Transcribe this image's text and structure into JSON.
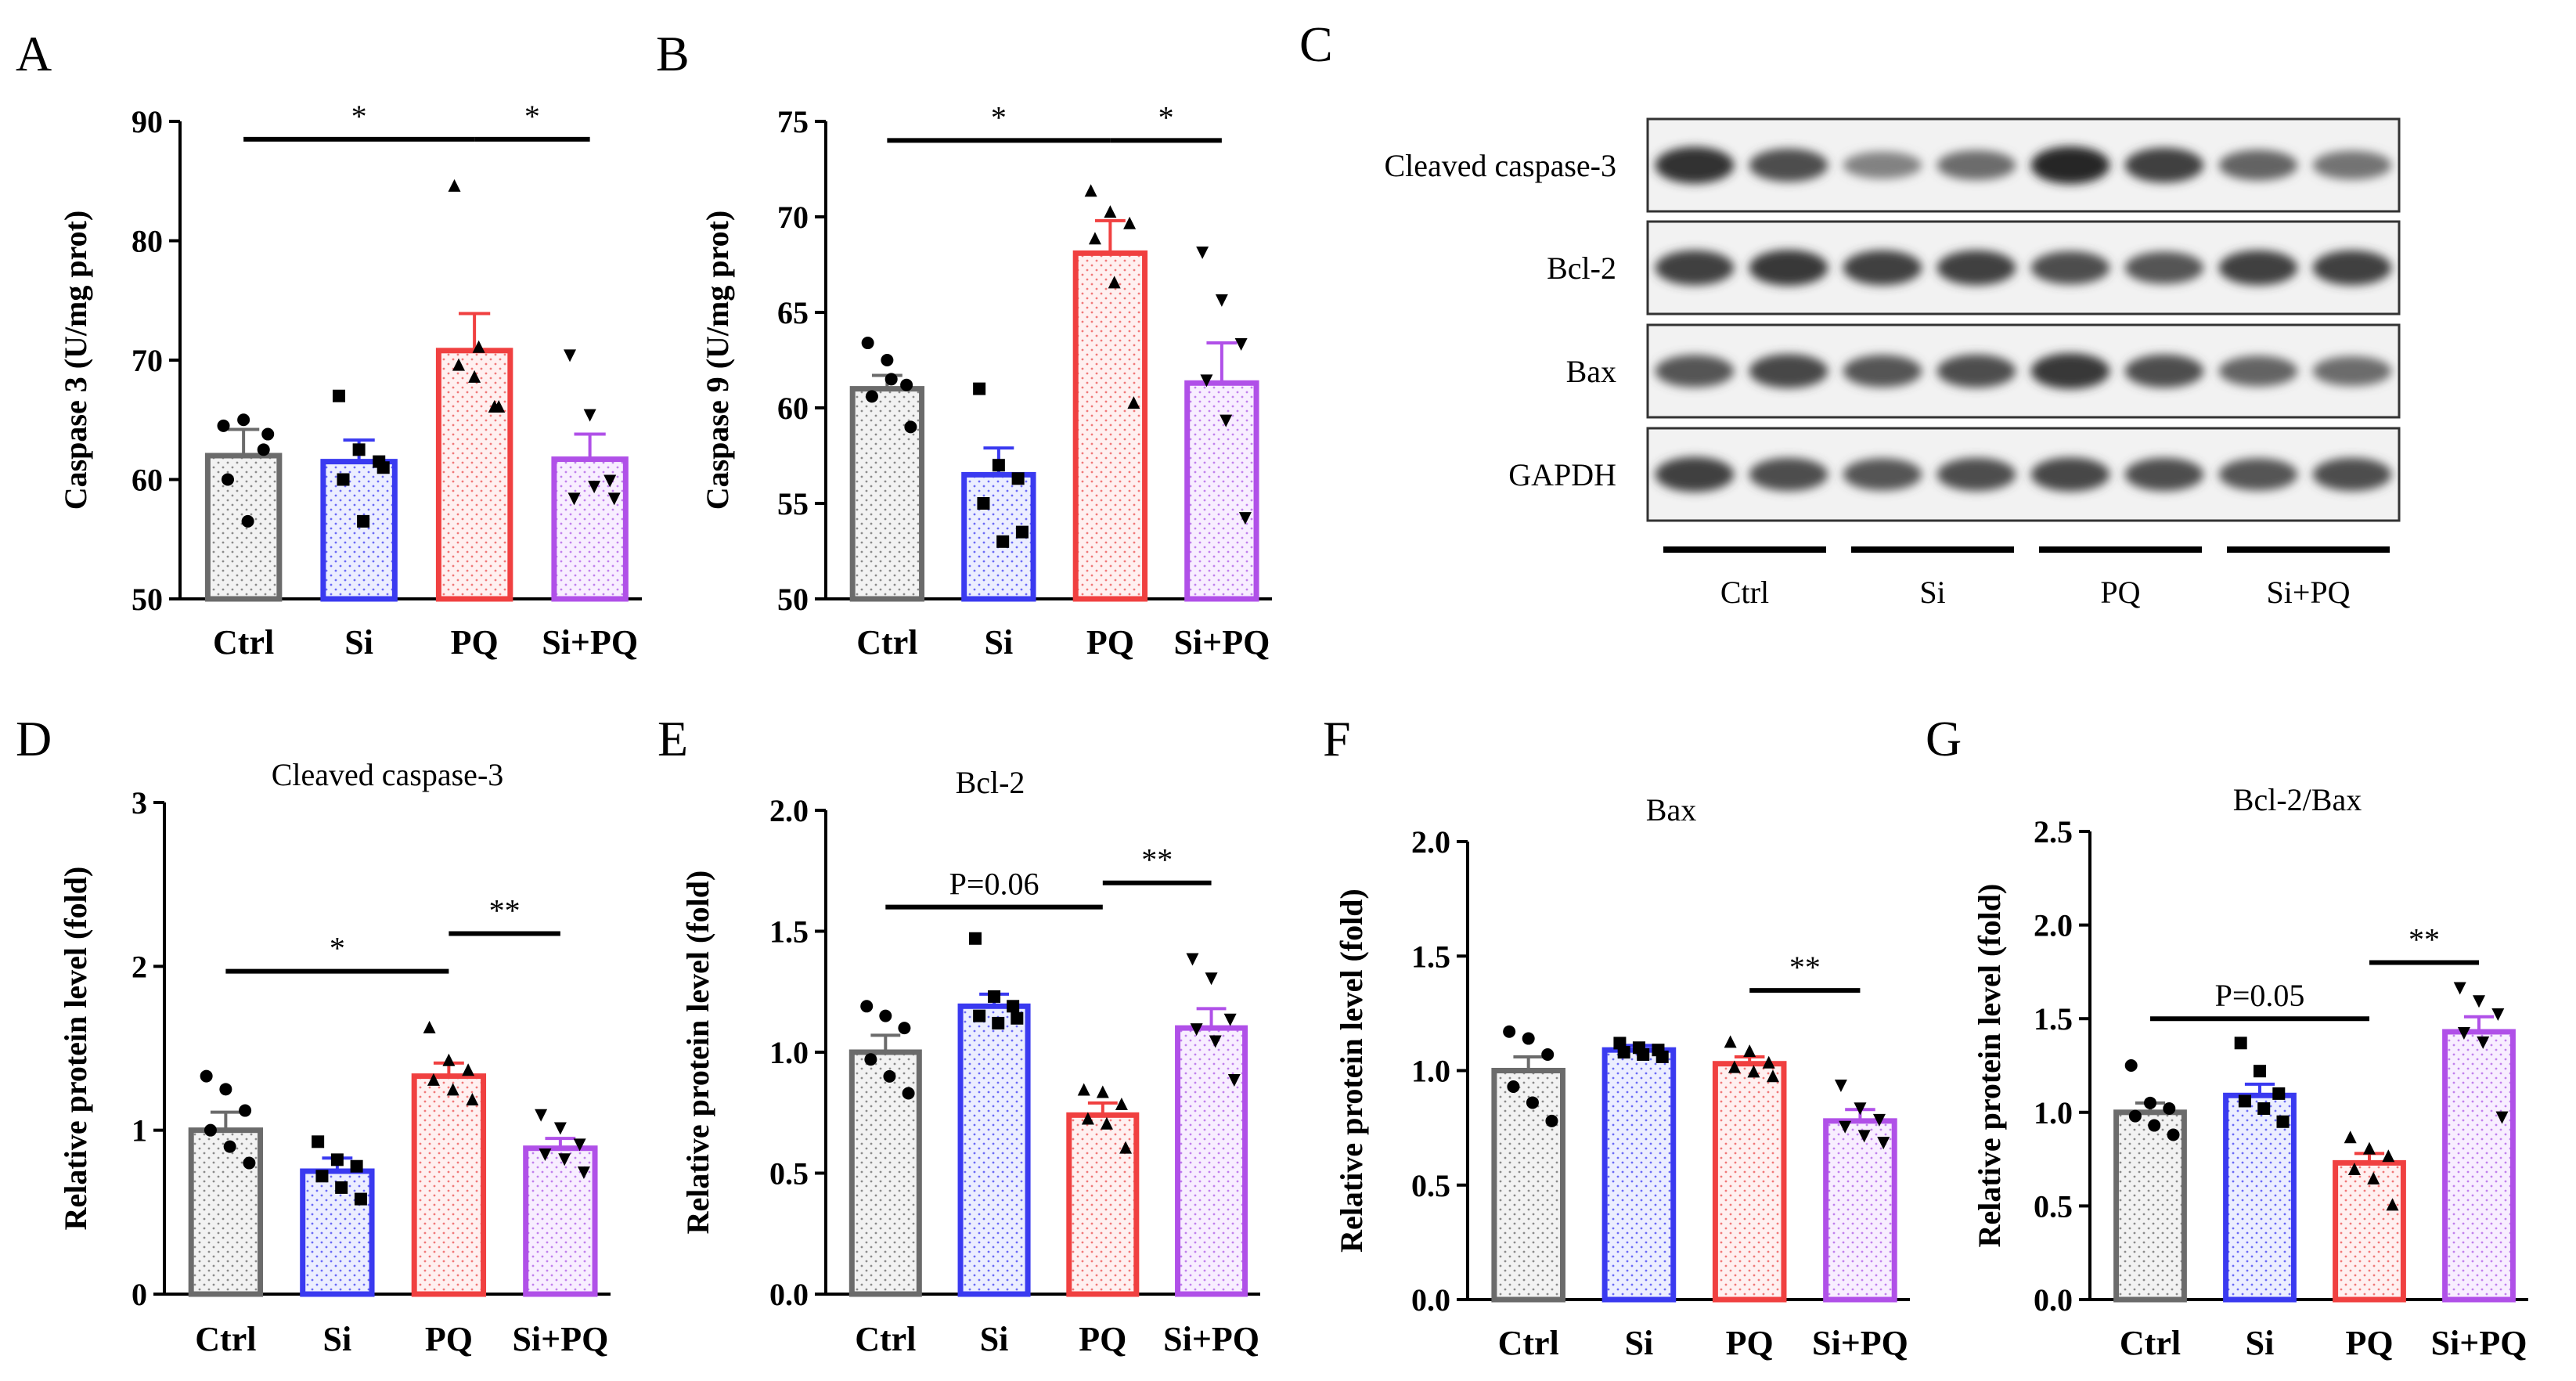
{
  "figure": {
    "panel_letters": [
      "A",
      "B",
      "C",
      "D",
      "E",
      "F",
      "G"
    ]
  },
  "blot": {
    "letter": "C",
    "rows": [
      "Cleaved caspase-3",
      "Bcl-2",
      "Bax",
      "GAPDH"
    ],
    "groups": [
      "Ctrl",
      "Si",
      "PQ",
      "Si+PQ"
    ],
    "band_intensity": [
      [
        0.95,
        0.75,
        0.4,
        0.55,
        1.0,
        0.85,
        0.6,
        0.5
      ],
      [
        0.85,
        0.9,
        0.85,
        0.85,
        0.75,
        0.7,
        0.85,
        0.85
      ],
      [
        0.7,
        0.8,
        0.7,
        0.75,
        0.9,
        0.75,
        0.6,
        0.55
      ],
      [
        0.85,
        0.75,
        0.7,
        0.75,
        0.8,
        0.75,
        0.7,
        0.75
      ]
    ]
  },
  "colors": {
    "Ctrl": "#6b6b6b",
    "Si": "#3a3af0",
    "PQ": "#f04040",
    "SiPQ": "#b050e8",
    "Ctrl_fill": "#ececec",
    "Si_fill": "#e6e8ff",
    "PQ_fill": "#ffe8e8",
    "SiPQ_fill": "#f6e8ff"
  },
  "chart_data": [
    {
      "letter": "A",
      "type": "bar",
      "title": "",
      "ylabel": "Caspase 3 (U/mg prot)",
      "categories": [
        "Ctrl",
        "Si",
        "PQ",
        "Si+PQ"
      ],
      "values": [
        62,
        61.5,
        70.8,
        61.7
      ],
      "errors": [
        2.2,
        1.8,
        3.1,
        2.1
      ],
      "points": [
        [
          64.5,
          65,
          62.5,
          60,
          56.5,
          63.8
        ],
        [
          67,
          62.5,
          61.5,
          60,
          56.5,
          61
        ],
        [
          84.5,
          68.5,
          66,
          69.5,
          71,
          66
        ],
        [
          70.5,
          65.5,
          60,
          58.5,
          59.5,
          58.5
        ]
      ],
      "markers": [
        "circle",
        "square",
        "triangle",
        "triangle-down"
      ],
      "ylim": [
        50,
        90
      ],
      "yticks": [
        "50",
        "60",
        "70",
        "80",
        "90"
      ],
      "annotations": [
        {
          "from": 0,
          "to": 2,
          "label": "*",
          "y": 88.5
        },
        {
          "from": 2,
          "to": 3,
          "label": "*",
          "y": 88.5
        }
      ]
    },
    {
      "letter": "B",
      "type": "bar",
      "title": "",
      "ylabel": "Caspase 9 (U/mg prot)",
      "categories": [
        "Ctrl",
        "Si",
        "PQ",
        "Si+PQ"
      ],
      "values": [
        61,
        56.5,
        68.1,
        61.3
      ],
      "errors": [
        0.7,
        1.4,
        1.7,
        2.1
      ],
      "points": [
        [
          63.4,
          62.5,
          61.2,
          60.6,
          61.5,
          59
        ],
        [
          61,
          57,
          56.3,
          55,
          53,
          53.5
        ],
        [
          71.3,
          70.2,
          69.6,
          68.8,
          66.5,
          60.2
        ],
        [
          68.2,
          65.7,
          63.4,
          61.5,
          59.4,
          54.3
        ]
      ],
      "markers": [
        "circle",
        "square",
        "triangle",
        "triangle-down"
      ],
      "ylim": [
        50,
        75
      ],
      "yticks": [
        "50",
        "55",
        "60",
        "65",
        "70",
        "75"
      ],
      "annotations": [
        {
          "from": 0,
          "to": 2,
          "label": "*",
          "y": 74
        },
        {
          "from": 2,
          "to": 3,
          "label": "*",
          "y": 74
        }
      ]
    },
    {
      "letter": "D",
      "type": "bar",
      "title": "Cleaved caspase-3",
      "ylabel": "Relative protein level (fold)",
      "categories": [
        "Ctrl",
        "Si",
        "PQ",
        "Si+PQ"
      ],
      "values": [
        1.0,
        0.75,
        1.33,
        0.89
      ],
      "errors": [
        0.11,
        0.08,
        0.08,
        0.06
      ],
      "points": [
        [
          1.33,
          1.25,
          1.12,
          1.0,
          0.9,
          0.8
        ],
        [
          0.93,
          0.82,
          0.78,
          0.72,
          0.65,
          0.58
        ],
        [
          1.62,
          1.42,
          1.36,
          1.3,
          1.24,
          1.18
        ],
        [
          1.1,
          1.02,
          0.92,
          0.86,
          0.83,
          0.75
        ]
      ],
      "markers": [
        "circle",
        "square",
        "triangle",
        "triangle-down"
      ],
      "ylim": [
        0,
        3
      ],
      "yticks": [
        "0",
        "1",
        "2",
        "3"
      ],
      "annotations": [
        {
          "from": 0,
          "to": 2,
          "label": "*",
          "y": 1.97
        },
        {
          "from": 2,
          "to": 3,
          "label": "**",
          "y": 2.2
        }
      ]
    },
    {
      "letter": "E",
      "type": "bar",
      "title": "Bcl-2",
      "ylabel": "Relative protein level (fold)",
      "categories": [
        "Ctrl",
        "Si",
        "PQ",
        "Si+PQ"
      ],
      "values": [
        1.0,
        1.19,
        0.74,
        1.1
      ],
      "errors": [
        0.07,
        0.05,
        0.05,
        0.08
      ],
      "points": [
        [
          1.19,
          1.15,
          1.1,
          0.97,
          0.9,
          0.83
        ],
        [
          1.47,
          1.23,
          1.19,
          1.15,
          1.12,
          1.14
        ],
        [
          0.84,
          0.83,
          0.78,
          0.72,
          0.7,
          0.6
        ],
        [
          1.39,
          1.31,
          1.14,
          1.1,
          1.05,
          0.89
        ]
      ],
      "markers": [
        "circle",
        "square",
        "triangle",
        "triangle-down"
      ],
      "ylim": [
        0,
        2
      ],
      "yticks": [
        "0.0",
        "0.5",
        "1.0",
        "1.5",
        "2.0"
      ],
      "annotations": [
        {
          "from": 0,
          "to": 2,
          "label": "P=0.06",
          "y": 1.6
        },
        {
          "from": 2,
          "to": 3,
          "label": "**",
          "y": 1.7
        }
      ]
    },
    {
      "letter": "F",
      "type": "bar",
      "title": "Bax",
      "ylabel": "Relative protein level (fold)",
      "categories": [
        "Ctrl",
        "Si",
        "PQ",
        "Si+PQ"
      ],
      "values": [
        1.0,
        1.09,
        1.03,
        0.78
      ],
      "errors": [
        0.06,
        0.02,
        0.03,
        0.05
      ],
      "points": [
        [
          1.17,
          1.14,
          1.07,
          0.93,
          0.86,
          0.78
        ],
        [
          1.12,
          1.1,
          1.09,
          1.08,
          1.07,
          1.06
        ],
        [
          1.12,
          1.08,
          1.03,
          1.01,
          0.99,
          0.97
        ],
        [
          0.94,
          0.84,
          0.79,
          0.76,
          0.72,
          0.69
        ]
      ],
      "markers": [
        "circle",
        "square",
        "triangle",
        "triangle-down"
      ],
      "ylim": [
        0,
        2
      ],
      "yticks": [
        "0.0",
        "0.5",
        "1.0",
        "1.5",
        "2.0"
      ],
      "annotations": [
        {
          "from": 2,
          "to": 3,
          "label": "**",
          "y": 1.35
        }
      ]
    },
    {
      "letter": "G",
      "type": "bar",
      "title": "Bcl-2/Bax",
      "ylabel": "Relative protein level (fold)",
      "categories": [
        "Ctrl",
        "Si",
        "PQ",
        "Si+PQ"
      ],
      "values": [
        1.0,
        1.09,
        0.73,
        1.43
      ],
      "errors": [
        0.05,
        0.06,
        0.05,
        0.08
      ],
      "points": [
        [
          1.25,
          1.05,
          1.02,
          0.98,
          0.93,
          0.88
        ],
        [
          1.37,
          1.22,
          1.1,
          1.06,
          1.02,
          0.95
        ],
        [
          0.86,
          0.8,
          0.76,
          0.69,
          0.64,
          0.5
        ],
        [
          1.67,
          1.6,
          1.53,
          1.43,
          1.38,
          0.98
        ]
      ],
      "markers": [
        "circle",
        "square",
        "triangle",
        "triangle-down"
      ],
      "ylim": [
        0,
        2.5
      ],
      "yticks": [
        "0.0",
        "0.5",
        "1.0",
        "1.5",
        "2.0",
        "2.5"
      ],
      "annotations": [
        {
          "from": 0,
          "to": 2,
          "label": "P=0.05",
          "y": 1.5
        },
        {
          "from": 2,
          "to": 3,
          "label": "**",
          "y": 1.8
        }
      ]
    }
  ]
}
